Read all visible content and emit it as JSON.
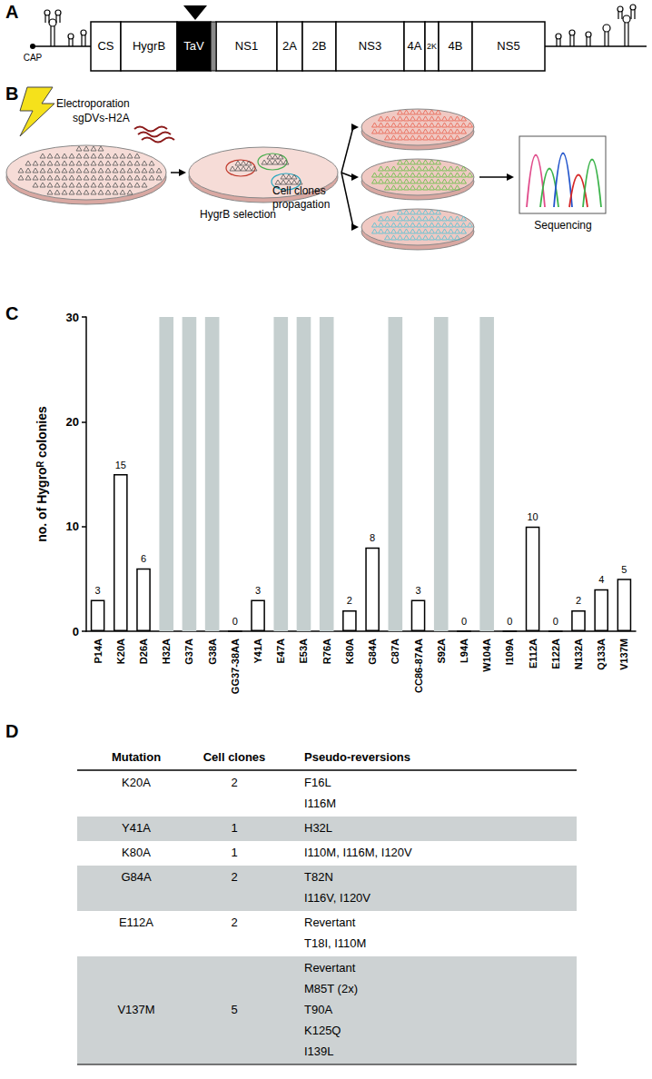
{
  "panel_labels": [
    "A",
    "B",
    "C",
    "D"
  ],
  "diagram": {
    "cap": "CAP",
    "segments": [
      "CS",
      "HygrB",
      "TaV",
      "NS1",
      "2A",
      "2B",
      "NS3",
      "4A",
      "2K",
      "4B",
      "NS5"
    ]
  },
  "workflow": {
    "electroporation": "Electroporation",
    "rna": "sgDVs-H2A",
    "selection": "HygrB selection",
    "propagation": [
      "Cell clones",
      "propagation"
    ],
    "sequencing": "Sequencing"
  },
  "chart_data": {
    "type": "bar",
    "categories": [
      "P14A",
      "K20A",
      "D26A",
      "H32A",
      "G37A",
      "G38A",
      "GG37-38AA",
      "Y41A",
      "E47A",
      "E53A",
      "R76A",
      "K80A",
      "G84A",
      "C87A",
      "CC86-87AA",
      "S92A",
      "L94A",
      "W104A",
      "I109A",
      "E112A",
      "E122A",
      "N132A",
      "Q133A",
      "V137M"
    ],
    "series": [
      {
        "color": "#c5cfcf",
        "values": [
          null,
          null,
          null,
          30,
          30,
          30,
          null,
          null,
          30,
          30,
          30,
          null,
          null,
          30,
          null,
          30,
          null,
          30,
          null,
          null,
          null,
          null,
          null,
          null
        ],
        "value_labels": [
          null,
          null,
          null,
          null,
          null,
          null,
          null,
          null,
          null,
          null,
          null,
          null,
          null,
          null,
          null,
          null,
          null,
          null,
          null,
          null,
          null,
          null,
          null,
          null
        ]
      },
      {
        "color": "#ffffff",
        "values": [
          3,
          15,
          6,
          null,
          null,
          null,
          0,
          3,
          null,
          null,
          null,
          2,
          8,
          null,
          3,
          null,
          0,
          null,
          0,
          10,
          0,
          2,
          4,
          5
        ]
      }
    ],
    "y_label": "no. of Hygroᴿ colonies",
    "ylim": [
      0,
      30
    ],
    "yticks": [
      0,
      10,
      20,
      30
    ],
    "grid": false,
    "data_labels": true
  },
  "table": {
    "header": [
      "Mutation",
      "Cell clones",
      "Pseudo-reversions"
    ],
    "rows": [
      {
        "mutation": "K20A",
        "cell_clones": "2",
        "pseudo_reversions": [
          "F16L",
          "I116M"
        ]
      },
      {
        "mutation": "Y41A",
        "cell_clones": "1",
        "pseudo_reversions": [
          "H32L"
        ]
      },
      {
        "mutation": "K80A",
        "cell_clones": "1",
        "pseudo_reversions": [
          "I110M, I116M, I120V"
        ]
      },
      {
        "mutation": "G84A",
        "cell_clones": "2",
        "pseudo_reversions": [
          "T82N",
          "I116V, I120V"
        ]
      },
      {
        "mutation": "E112A",
        "cell_clones": "2",
        "pseudo_reversions": [
          "Revertant",
          "T18I, I110M"
        ]
      },
      {
        "mutation": "V137M",
        "cell_clones": "5",
        "pseudo_reversions": [
          "Revertant",
          "M85T (2x)",
          "T90A",
          "K125Q",
          "I139L"
        ]
      }
    ]
  }
}
